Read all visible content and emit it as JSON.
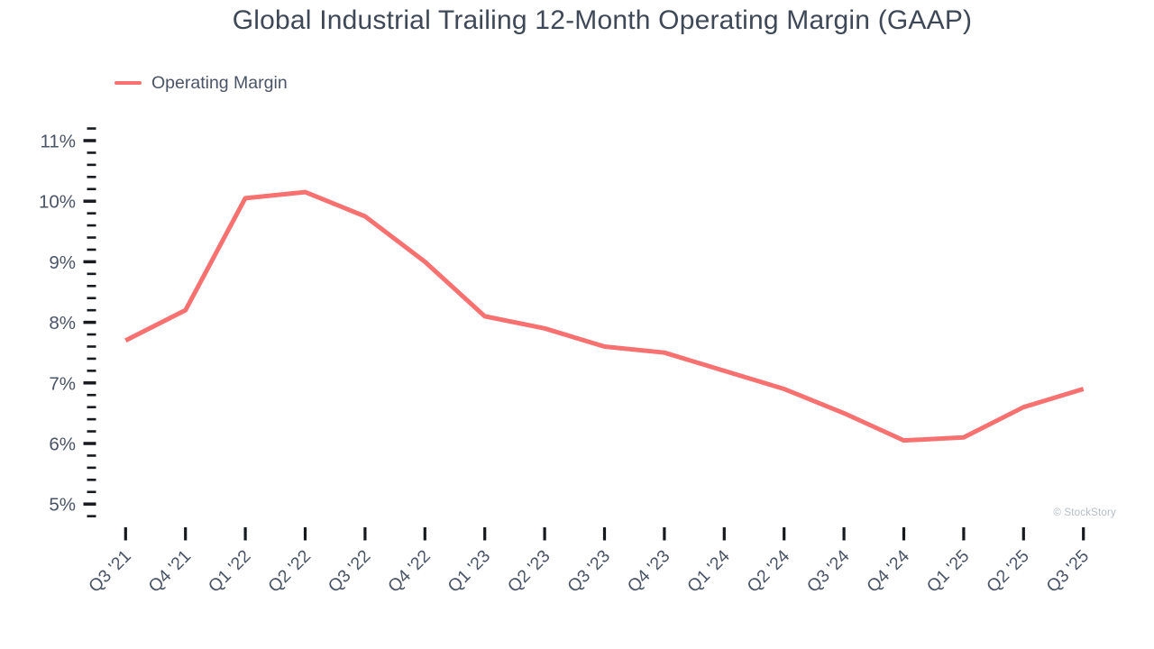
{
  "title": "Global Industrial Trailing 12-Month Operating Margin (GAAP)",
  "watermark": "© StockStory",
  "legend": {
    "label": "Operating Margin",
    "color": "#f87171"
  },
  "colors": {
    "line": "#f87171",
    "title_text": "#3e4856",
    "axis_label_text": "#4a5466",
    "tick_mark": "#16191e",
    "watermark_text": "#b6bcc6"
  },
  "chart_data": {
    "type": "line",
    "title": "Global Industrial Trailing 12-Month Operating Margin (GAAP)",
    "categories": [
      "Q3 '21",
      "Q4 '21",
      "Q1 '22",
      "Q2 '22",
      "Q3 '22",
      "Q4 '22",
      "Q1 '23",
      "Q2 '23",
      "Q3 '23",
      "Q4 '23",
      "Q1 '24",
      "Q2 '24",
      "Q3 '24",
      "Q4 '24",
      "Q1 '25",
      "Q2 '25",
      "Q3 '25"
    ],
    "series": [
      {
        "name": "Operating Margin",
        "values": [
          7.7,
          8.2,
          10.05,
          10.15,
          9.75,
          9.0,
          8.1,
          7.9,
          7.6,
          7.5,
          7.2,
          6.9,
          6.5,
          6.05,
          6.1,
          6.6,
          6.9
        ]
      }
    ],
    "unit": "%",
    "xlabel": "",
    "ylabel": "",
    "y_axis": {
      "min": 4.8,
      "max": 11.2,
      "major_tick_step": 1,
      "minor_tick_step": 0.2,
      "tick_values": [
        5,
        6,
        7,
        8,
        9,
        10,
        11
      ],
      "tick_labels": [
        "5%",
        "6%",
        "7%",
        "8%",
        "9%",
        "10%",
        "11%"
      ]
    },
    "grid": false,
    "legend_position": "top-left",
    "line_color": "#f87171"
  }
}
